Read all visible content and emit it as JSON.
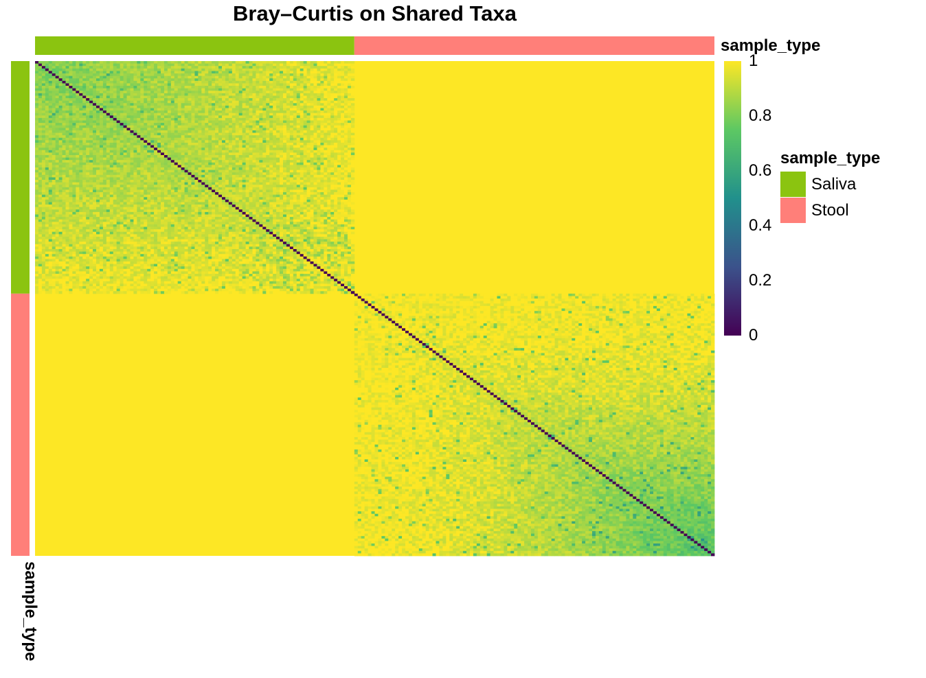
{
  "chart_data": {
    "type": "heatmap",
    "title": "Bray–Curtis on Shared Taxa",
    "metric": "Bray–Curtis dissimilarity",
    "matrix": "symmetric sample × sample, diagonal = 0, sample order clustered",
    "sample_groups": [
      {
        "name": "Saliva",
        "color": "#8BC410",
        "fraction_of_samples": 0.468
      },
      {
        "name": "Stool",
        "color": "#FF7F79",
        "fraction_of_samples": 0.532
      }
    ],
    "block_values": {
      "saliva_vs_saliva": {
        "typical": 0.95,
        "range": [
          0.75,
          1.0
        ]
      },
      "stool_vs_stool": {
        "typical": 0.95,
        "range": [
          0.55,
          1.0
        ]
      },
      "saliva_vs_stool": {
        "typical": 1.0,
        "range": [
          0.98,
          1.0
        ]
      },
      "diagonal": 0
    },
    "colorbar": {
      "palette": "viridis",
      "range": [
        0,
        1
      ],
      "ticks": [
        "1",
        "0.8",
        "0.6",
        "0.4",
        "0.2",
        "0"
      ],
      "colors": [
        "#440154",
        "#3B528B",
        "#21908C",
        "#5DC863",
        "#FDE725"
      ]
    },
    "annotation": {
      "label": "sample_type",
      "legend_title": "sample_type"
    }
  }
}
